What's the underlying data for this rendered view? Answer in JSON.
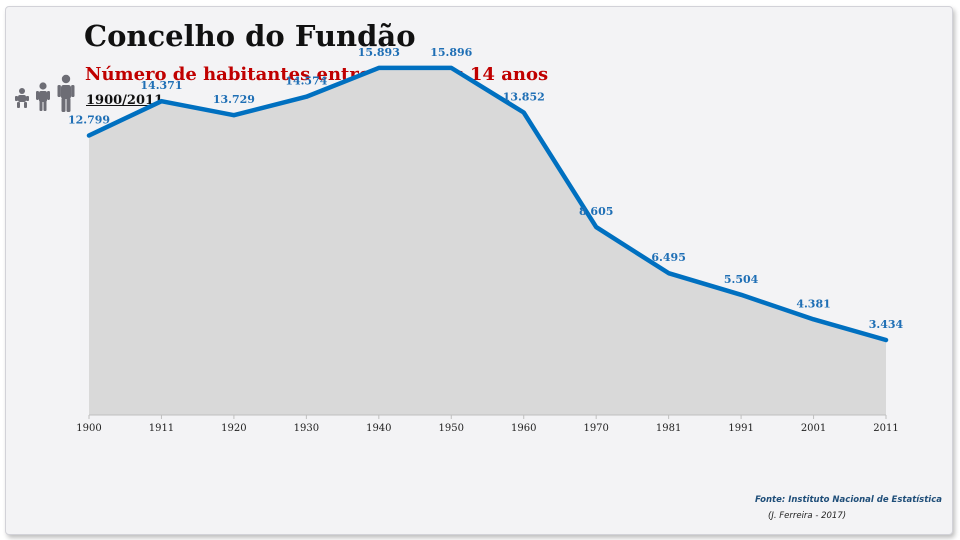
{
  "header": {
    "title": "Concelho do Fundão",
    "subtitle": "Número de habitantes entre os 0 e os 14 anos",
    "period": "1900/2011"
  },
  "icons": [
    "baby-icon",
    "child-icon",
    "adult-icon"
  ],
  "footer": {
    "source": "Fonte: Instituto Nacional de Estatística",
    "author": "(J. Ferreira - 2017)"
  },
  "colors": {
    "line": "#0070c0",
    "area": "#d9d9d9",
    "title": "#111111",
    "subtitle": "#c00000",
    "labels": "#1f6fb5"
  },
  "chart_data": {
    "type": "area",
    "categories": [
      "1900",
      "1911",
      "1920",
      "1930",
      "1940",
      "1950",
      "1960",
      "1970",
      "1981",
      "1991",
      "2001",
      "2011"
    ],
    "series": [
      {
        "values": [
          12799,
          14371,
          13729,
          14574,
          15893,
          15896,
          13852,
          8605,
          6495,
          5504,
          4381,
          3434
        ],
        "labels": [
          "12.799",
          "14.371",
          "13.729",
          "14.574",
          "15.893",
          "15.896",
          "13.852",
          "8.605",
          "6.495",
          "5.504",
          "4.381",
          "3.434"
        ]
      }
    ],
    "ylim": [
      0,
      18500
    ],
    "grid": false,
    "legend": "none"
  }
}
